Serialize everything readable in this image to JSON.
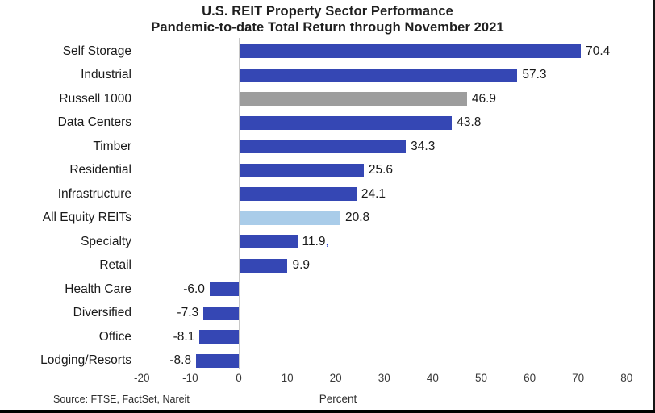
{
  "chart_data": {
    "type": "bar",
    "orientation": "horizontal",
    "title": "U.S. REIT Property Sector Performance",
    "subtitle": "Pandemic-to-date Total Return through November 2021",
    "xlabel": "Percent",
    "xlim": [
      -20,
      80
    ],
    "x_ticks": [
      -20,
      -10,
      0,
      10,
      20,
      30,
      40,
      50,
      60,
      70,
      80
    ],
    "grid": false,
    "legend": false,
    "value_labels": true,
    "items": [
      {
        "label": "Self Storage",
        "value": 70.4,
        "color_key": "blue"
      },
      {
        "label": "Industrial",
        "value": 57.3,
        "color_key": "blue"
      },
      {
        "label": "Russell 1000",
        "value": 46.9,
        "color_key": "gray"
      },
      {
        "label": "Data Centers",
        "value": 43.8,
        "color_key": "blue"
      },
      {
        "label": "Timber",
        "value": 34.3,
        "color_key": "blue"
      },
      {
        "label": "Residential",
        "value": 25.6,
        "color_key": "blue"
      },
      {
        "label": "Infrastructure",
        "value": 24.1,
        "color_key": "blue"
      },
      {
        "label": "All Equity REITs",
        "value": 20.8,
        "color_key": "lightblue"
      },
      {
        "label": "Specialty",
        "value": 11.9,
        "color_key": "blue",
        "suffix_mark": ","
      },
      {
        "label": "Retail",
        "value": 9.9,
        "color_key": "blue"
      },
      {
        "label": "Health Care",
        "value": -6.0,
        "color_key": "blue"
      },
      {
        "label": "Diversified",
        "value": -7.3,
        "color_key": "blue"
      },
      {
        "label": "Office",
        "value": -8.1,
        "color_key": "blue"
      },
      {
        "label": "Lodging/Resorts",
        "value": -8.8,
        "color_key": "blue"
      }
    ],
    "colors": {
      "blue": "#3547B4",
      "gray": "#9D9D9D",
      "lightblue": "#A9CCE9",
      "mark_blue": "#2B3FC8"
    }
  },
  "footer": {
    "source": "Source: FTSE, FactSet, Nareit"
  }
}
